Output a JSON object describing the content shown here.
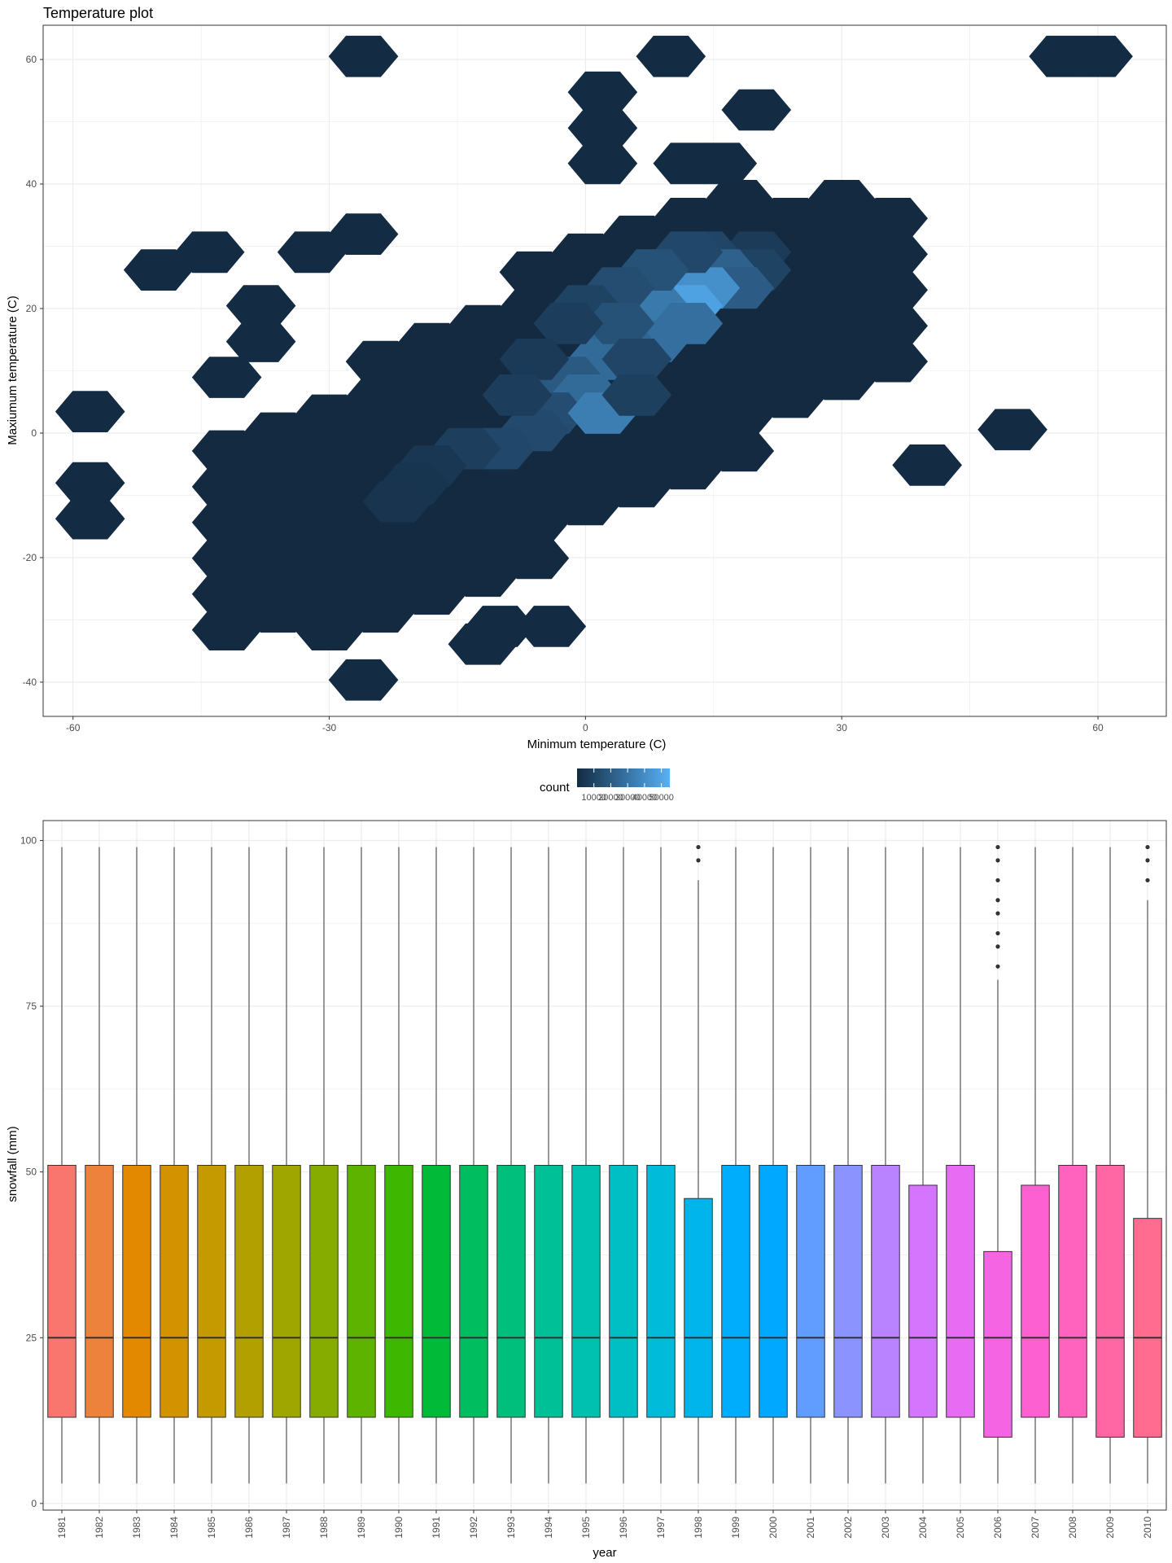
{
  "chart_data": [
    {
      "type": "hexbin",
      "title": "Temperature plot",
      "xlabel": "Minimum temperature (C)",
      "ylabel": "Maxiumum temperature (C)",
      "xlim": [
        -63.5,
        68
      ],
      "ylim": [
        -45.5,
        65.5
      ],
      "x_ticks": [
        -60,
        -30,
        0,
        30,
        60
      ],
      "y_ticks": [
        -40,
        -20,
        0,
        20,
        40,
        60
      ],
      "grid": true,
      "legend": {
        "title": "count",
        "position": "bottom",
        "labels": [
          "10000",
          "20000",
          "30000",
          "40000",
          "50000"
        ],
        "range": [
          1,
          55000
        ],
        "colors": [
          "#132B43",
          "#56B1F7"
        ]
      },
      "hex_size_c": [
        4,
        3.83
      ],
      "bins": [
        {
          "x": -26,
          "y": 60.5,
          "count": 1
        },
        {
          "x": 10,
          "y": 60.5,
          "count": 1
        },
        {
          "x": 56,
          "y": 60.5,
          "count": 1
        },
        {
          "x": 60,
          "y": 60.5,
          "count": 1
        },
        {
          "x": 2,
          "y": 54.75,
          "count": 1
        },
        {
          "x": 20,
          "y": 51.9,
          "count": 1
        },
        {
          "x": 2,
          "y": 49,
          "count": 1
        },
        {
          "x": 2,
          "y": 43.3,
          "count": 1
        },
        {
          "x": 12,
          "y": 43.3,
          "count": 1
        },
        {
          "x": 16,
          "y": 43.3,
          "count": 1
        },
        {
          "x": -58,
          "y": 3.45,
          "count": 1
        },
        {
          "x": -58,
          "y": -8,
          "count": 1
        },
        {
          "x": -58,
          "y": -13.75,
          "count": 1
        },
        {
          "x": -50,
          "y": 26.2,
          "count": 1
        },
        {
          "x": -44,
          "y": 29.05,
          "count": 1
        },
        {
          "x": -38,
          "y": 20.45,
          "count": 1
        },
        {
          "x": -38,
          "y": 14.7,
          "count": 1
        },
        {
          "x": -42,
          "y": 8.95,
          "count": 1
        },
        {
          "x": -32,
          "y": 29.05,
          "count": 1
        },
        {
          "x": -26,
          "y": 31.95,
          "count": 1
        },
        {
          "x": 50,
          "y": 0.55,
          "count": 1
        },
        {
          "x": 40,
          "y": -5.15,
          "count": 1
        },
        {
          "x": -26,
          "y": -39.65,
          "count": 1
        },
        {
          "x": -12,
          "y": -33.9,
          "count": 1
        },
        {
          "x": -10,
          "y": -31.05,
          "count": 1
        },
        {
          "x": -4,
          "y": -31.05,
          "count": 1
        },
        {
          "x": 20,
          "y": 29.05,
          "count": 5200
        },
        {
          "x": 20,
          "y": 26.2,
          "count": 8000
        },
        {
          "x": 14,
          "y": 29.05,
          "count": 9000
        },
        {
          "x": 16,
          "y": 26.2,
          "count": 20000
        },
        {
          "x": 18,
          "y": 23.3,
          "count": 18000
        },
        {
          "x": 14,
          "y": 23.3,
          "count": 40000
        },
        {
          "x": 12,
          "y": 20.45,
          "count": 48000
        },
        {
          "x": 8,
          "y": 20.45,
          "count": 30000
        },
        {
          "x": 12,
          "y": 17.6,
          "count": 26000
        },
        {
          "x": 8,
          "y": 14.7,
          "count": 26000
        },
        {
          "x": 4,
          "y": 14.7,
          "count": 22000
        },
        {
          "x": 2,
          "y": 11.85,
          "count": 24000
        },
        {
          "x": -2,
          "y": 8.95,
          "count": 17000
        },
        {
          "x": 0,
          "y": 6.1,
          "count": 24000
        },
        {
          "x": -4,
          "y": 3.2,
          "count": 12000
        },
        {
          "x": 2,
          "y": 3.2,
          "count": 32000
        },
        {
          "x": -6,
          "y": 0.4,
          "count": 11000
        },
        {
          "x": -10,
          "y": -2.5,
          "count": 10000
        },
        {
          "x": -14,
          "y": -2.5,
          "count": 6500
        },
        {
          "x": 12,
          "y": 29.05,
          "count": 10000
        },
        {
          "x": 8,
          "y": 26.2,
          "count": 14000
        },
        {
          "x": 4,
          "y": 23.3,
          "count": 12000
        },
        {
          "x": 0,
          "y": 20.45,
          "count": 8000
        },
        {
          "x": 4,
          "y": 17.6,
          "count": 14000
        },
        {
          "x": -2,
          "y": 17.6,
          "count": 6000
        },
        {
          "x": 6,
          "y": 11.85,
          "count": 9000
        },
        {
          "x": -6,
          "y": 11.85,
          "count": 5000
        },
        {
          "x": 6,
          "y": 6.1,
          "count": 7000
        },
        {
          "x": -8,
          "y": 6.1,
          "count": 6000
        },
        {
          "x": -18,
          "y": -5.3,
          "count": 3500
        },
        {
          "x": -20,
          "y": -8.2,
          "count": 3000
        },
        {
          "x": -22,
          "y": -11,
          "count": 2800
        }
      ],
      "dense_fill_note": ""
    },
    {
      "type": "boxplot",
      "title": "",
      "xlabel": "year",
      "ylabel": "snowfall (mm)",
      "ylim": [
        -1,
        103
      ],
      "y_ticks": [
        0,
        25,
        50,
        75,
        100
      ],
      "grid": true,
      "categories": [
        "1981",
        "1982",
        "1983",
        "1984",
        "1985",
        "1986",
        "1987",
        "1988",
        "1989",
        "1990",
        "1991",
        "1992",
        "1993",
        "1994",
        "1995",
        "1996",
        "1997",
        "1998",
        "1999",
        "2000",
        "2001",
        "2002",
        "2003",
        "2004",
        "2005",
        "2006",
        "2007",
        "2008",
        "2009",
        "2010"
      ],
      "colors": [
        "#F8766D",
        "#EC823C",
        "#E38900",
        "#D39200",
        "#C49A00",
        "#B2A000",
        "#9FA600",
        "#86AC00",
        "#5EB300",
        "#3EB700",
        "#00BA38",
        "#00BD5F",
        "#00BF7D",
        "#00C097",
        "#00C1AF",
        "#00BFC4",
        "#00BBDA",
        "#00B5EB",
        "#00ACFC",
        "#00A9FF",
        "#619CFF",
        "#8B93FF",
        "#B983FF",
        "#D575FE",
        "#E76BF3",
        "#F564E3",
        "#FD61D1",
        "#FF63BE",
        "#FF67A4",
        "#FF6C90"
      ],
      "boxes": [
        {
          "min": 3,
          "q1": 13,
          "median": 25,
          "q3": 51,
          "max": 99,
          "outliers": []
        },
        {
          "min": 3,
          "q1": 13,
          "median": 25,
          "q3": 51,
          "max": 99,
          "outliers": []
        },
        {
          "min": 3,
          "q1": 13,
          "median": 25,
          "q3": 51,
          "max": 99,
          "outliers": []
        },
        {
          "min": 3,
          "q1": 13,
          "median": 25,
          "q3": 51,
          "max": 99,
          "outliers": []
        },
        {
          "min": 3,
          "q1": 13,
          "median": 25,
          "q3": 51,
          "max": 99,
          "outliers": []
        },
        {
          "min": 3,
          "q1": 13,
          "median": 25,
          "q3": 51,
          "max": 99,
          "outliers": []
        },
        {
          "min": 3,
          "q1": 13,
          "median": 25,
          "q3": 51,
          "max": 99,
          "outliers": []
        },
        {
          "min": 3,
          "q1": 13,
          "median": 25,
          "q3": 51,
          "max": 99,
          "outliers": []
        },
        {
          "min": 3,
          "q1": 13,
          "median": 25,
          "q3": 51,
          "max": 99,
          "outliers": []
        },
        {
          "min": 3,
          "q1": 13,
          "median": 25,
          "q3": 51,
          "max": 99,
          "outliers": []
        },
        {
          "min": 3,
          "q1": 13,
          "median": 25,
          "q3": 51,
          "max": 99,
          "outliers": []
        },
        {
          "min": 3,
          "q1": 13,
          "median": 25,
          "q3": 51,
          "max": 99,
          "outliers": []
        },
        {
          "min": 3,
          "q1": 13,
          "median": 25,
          "q3": 51,
          "max": 99,
          "outliers": []
        },
        {
          "min": 3,
          "q1": 13,
          "median": 25,
          "q3": 51,
          "max": 99,
          "outliers": []
        },
        {
          "min": 3,
          "q1": 13,
          "median": 25,
          "q3": 51,
          "max": 99,
          "outliers": []
        },
        {
          "min": 3,
          "q1": 13,
          "median": 25,
          "q3": 51,
          "max": 99,
          "outliers": []
        },
        {
          "min": 3,
          "q1": 13,
          "median": 25,
          "q3": 51,
          "max": 99,
          "outliers": []
        },
        {
          "min": 3,
          "q1": 13,
          "median": 25,
          "q3": 46,
          "max": 94,
          "outliers": [
            97,
            99
          ]
        },
        {
          "min": 3,
          "q1": 13,
          "median": 25,
          "q3": 51,
          "max": 99,
          "outliers": []
        },
        {
          "min": 3,
          "q1": 13,
          "median": 25,
          "q3": 51,
          "max": 99,
          "outliers": []
        },
        {
          "min": 3,
          "q1": 13,
          "median": 25,
          "q3": 51,
          "max": 99,
          "outliers": []
        },
        {
          "min": 3,
          "q1": 13,
          "median": 25,
          "q3": 51,
          "max": 99,
          "outliers": []
        },
        {
          "min": 3,
          "q1": 13,
          "median": 25,
          "q3": 51,
          "max": 99,
          "outliers": []
        },
        {
          "min": 3,
          "q1": 13,
          "median": 25,
          "q3": 48,
          "max": 99,
          "outliers": []
        },
        {
          "min": 3,
          "q1": 13,
          "median": 25,
          "q3": 51,
          "max": 99,
          "outliers": []
        },
        {
          "min": 3,
          "q1": 10,
          "median": 25,
          "q3": 38,
          "max": 79,
          "outliers": [
            81,
            84,
            86,
            89,
            91,
            94,
            97,
            99
          ]
        },
        {
          "min": 3,
          "q1": 13,
          "median": 25,
          "q3": 48,
          "max": 99,
          "outliers": []
        },
        {
          "min": 3,
          "q1": 13,
          "median": 25,
          "q3": 51,
          "max": 99,
          "outliers": []
        },
        {
          "min": 3,
          "q1": 10,
          "median": 25,
          "q3": 51,
          "max": 99,
          "outliers": []
        },
        {
          "min": 3,
          "q1": 10,
          "median": 25,
          "q3": 43,
          "max": 91,
          "outliers": [
            94,
            97,
            99
          ]
        }
      ]
    }
  ]
}
